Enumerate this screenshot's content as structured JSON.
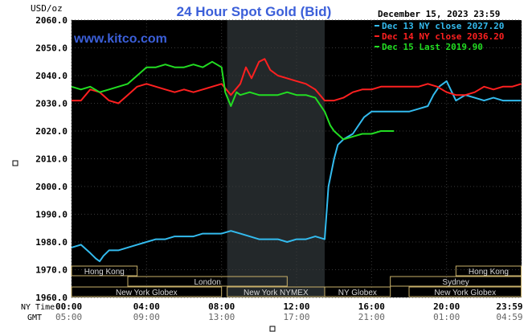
{
  "chart_data": {
    "type": "line",
    "title": "24 Hour Spot Gold (Bid)",
    "ylabel": "USD/oz",
    "watermark": "www.kitco.com",
    "timestamp": "December 15, 2023 23:59",
    "ylim": [
      1960,
      2060
    ],
    "yticks": [
      "2060.0",
      "2050.0",
      "2040.0",
      "2030.0",
      "2020.0",
      "2010.0",
      "2000.0",
      "1990.0",
      "1980.0",
      "1970.0",
      "1960.0"
    ],
    "ny_time_label": "NY Time",
    "gmt_label": "GMT",
    "ny_ticks": [
      "00:00",
      "04:00",
      "08:00",
      "12:00",
      "16:00",
      "20:00",
      "23:59"
    ],
    "gmt_ticks": [
      "05:00",
      "09:00",
      "13:00",
      "17:00",
      "21:00",
      "01:00",
      "04:59"
    ],
    "legend": [
      {
        "label": "Dec 13 NY close 2027.20",
        "color": "#33bbee"
      },
      {
        "label": "Dec 14 NY close 2036.20",
        "color": "#ff2020"
      },
      {
        "label": "Dec 15 Last 2019.90",
        "color": "#22dd22"
      }
    ],
    "sessions": [
      {
        "name": "Hong Kong",
        "start": 0,
        "end": 3.5,
        "row": 0
      },
      {
        "name": "Hong Kong",
        "start": 20.5,
        "end": 23.98,
        "row": 0
      },
      {
        "name": "London",
        "start": 3,
        "end": 11.5,
        "row": 1
      },
      {
        "name": "Sydney",
        "start": 17,
        "end": 23.98,
        "row": 1
      },
      {
        "name": "New York Globex",
        "start": 0,
        "end": 8,
        "row": 2
      },
      {
        "name": "New York NYMEX",
        "start": 8.3,
        "end": 13.5,
        "row": 2
      },
      {
        "name": "NY Globex",
        "start": 13.5,
        "end": 17,
        "row": 2
      },
      {
        "name": "New York Globex",
        "start": 18,
        "end": 23.98,
        "row": 2
      }
    ],
    "highlight_hours": [
      8.3,
      13.5
    ],
    "series": [
      {
        "name": "Dec 13 NY close 2027.20",
        "color": "#33bbee",
        "x": [
          0,
          0.5,
          1,
          1.3,
          1.5,
          1.7,
          2,
          2.5,
          3,
          3.5,
          4,
          4.5,
          5,
          5.5,
          6,
          6.5,
          7,
          7.5,
          8,
          8.5,
          9,
          9.5,
          10,
          10.5,
          11,
          11.5,
          12,
          12.5,
          13,
          13.5,
          13.7,
          14,
          14.2,
          14.5,
          15,
          15.3,
          15.6,
          16,
          16.5,
          17,
          17.5,
          18,
          18.5,
          19,
          19.3,
          19.6,
          20,
          20.5,
          21,
          21.5,
          22,
          22.5,
          23,
          23.5,
          23.98
        ],
        "y": [
          1978,
          1979,
          1976,
          1974,
          1973,
          1975,
          1977,
          1977,
          1978,
          1979,
          1980,
          1981,
          1981,
          1982,
          1982,
          1982,
          1983,
          1983,
          1983,
          1984,
          1983,
          1982,
          1981,
          1981,
          1981,
          1980,
          1981,
          1981,
          1982,
          1981,
          2000,
          2010,
          2015,
          2017,
          2019,
          2022,
          2025,
          2027,
          2027,
          2027,
          2027,
          2027,
          2028,
          2029,
          2033,
          2036,
          2038,
          2031,
          2033,
          2032,
          2031,
          2032,
          2031,
          2031,
          2031
        ]
      },
      {
        "name": "Dec 14 NY close 2036.20",
        "color": "#ff2020",
        "x": [
          0,
          0.5,
          1,
          1.5,
          2,
          2.5,
          3,
          3.5,
          4,
          4.5,
          5,
          5.5,
          6,
          6.5,
          7,
          7.5,
          8,
          8.5,
          9,
          9.3,
          9.6,
          10,
          10.3,
          10.6,
          11,
          11.5,
          12,
          12.5,
          13,
          13.5,
          14,
          14.5,
          15,
          15.5,
          16,
          16.5,
          17,
          17.5,
          18,
          18.5,
          19,
          19.5,
          20,
          20.5,
          21,
          21.5,
          22,
          22.5,
          23,
          23.5,
          23.98
        ],
        "y": [
          2031,
          2031,
          2035,
          2034,
          2031,
          2030,
          2033,
          2036,
          2037,
          2036,
          2035,
          2034,
          2035,
          2034,
          2035,
          2036,
          2037,
          2033,
          2037,
          2043,
          2039,
          2045,
          2046,
          2042,
          2040,
          2039,
          2038,
          2037,
          2035,
          2031,
          2031,
          2032,
          2034,
          2035,
          2035,
          2036,
          2036,
          2036,
          2036,
          2036,
          2037,
          2036,
          2034,
          2033,
          2033,
          2034,
          2036,
          2035,
          2036,
          2036,
          2037
        ]
      },
      {
        "name": "Dec 15 Last 2019.90",
        "color": "#22dd22",
        "x": [
          0,
          0.5,
          1,
          1.5,
          2,
          2.5,
          3,
          3.5,
          4,
          4.5,
          5,
          5.5,
          6,
          6.5,
          7,
          7.5,
          8,
          8.2,
          8.5,
          8.8,
          9,
          9.5,
          10,
          10.5,
          11,
          11.5,
          12,
          12.5,
          13,
          13.5,
          13.8,
          14,
          14.5,
          15,
          15.5,
          16,
          16.5,
          17,
          17.2
        ],
        "y": [
          2036,
          2035,
          2036,
          2034,
          2035,
          2036,
          2037,
          2040,
          2043,
          2043,
          2044,
          2043,
          2043,
          2044,
          2043,
          2045,
          2043,
          2034,
          2029,
          2034,
          2033,
          2034,
          2033,
          2033,
          2033,
          2034,
          2033,
          2033,
          2032,
          2027,
          2022,
          2020,
          2017,
          2018,
          2019,
          2019,
          2020,
          2020,
          2020
        ]
      }
    ]
  }
}
